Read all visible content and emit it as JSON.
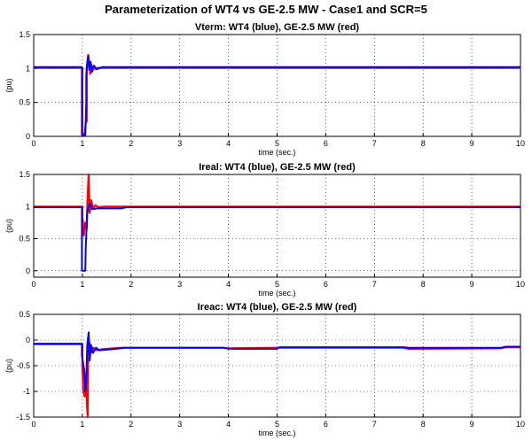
{
  "figure": {
    "title": "Parameterization of WT4 vs GE-2.5 MW - Case1 and SCR=5"
  },
  "colors": {
    "wt4": "#0000ff",
    "ge": "#ff0000",
    "axis": "#000000",
    "grid": "#000000"
  },
  "chart_data": [
    {
      "type": "line",
      "title": "Vterm: WT4 (blue), GE-2.5 MW (red)",
      "xlabel": "time (sec.)",
      "ylabel": "(pu)",
      "xlim": [
        0,
        10
      ],
      "ylim": [
        0,
        1.5
      ],
      "xticks": [
        "0",
        "1",
        "2",
        "3",
        "4",
        "5",
        "6",
        "7",
        "8",
        "9",
        "10"
      ],
      "xtick_values": [
        0,
        1,
        2,
        3,
        4,
        5,
        6,
        7,
        8,
        9,
        10
      ],
      "yticks": [
        "0",
        "0.5",
        "1",
        "1.5"
      ],
      "ytick_values": [
        0,
        0.5,
        1,
        1.5
      ],
      "grid": true,
      "series": [
        {
          "color": "#ff0000",
          "x": [
            0,
            0.99,
            1.0,
            1.0,
            1.05,
            1.07,
            1.09,
            1.09,
            1.12,
            1.14,
            1.16,
            1.18,
            1.2,
            1.23,
            1.27,
            1.32,
            1.4,
            10
          ],
          "y": [
            1.01,
            1.01,
            1.01,
            0.0,
            0.05,
            0.2,
            0.22,
            1.0,
            1.2,
            1.1,
            0.92,
            1.06,
            0.96,
            1.04,
            0.99,
            1.01,
            1.01,
            1.01
          ]
        },
        {
          "color": "#0000ff",
          "x": [
            0,
            0.98,
            0.99,
            0.99,
            1.06,
            1.08,
            1.08,
            1.1,
            1.12,
            1.14,
            1.17,
            1.2,
            1.24,
            1.3,
            1.4,
            10
          ],
          "y": [
            1.02,
            1.02,
            1.02,
            0.02,
            0.02,
            0.5,
            0.9,
            1.08,
            1.18,
            0.98,
            1.1,
            0.95,
            1.04,
            0.99,
            1.02,
            1.02
          ]
        }
      ]
    },
    {
      "type": "line",
      "title": "Ireal: WT4 (blue), GE-2.5 MW (red)",
      "xlabel": "time (sec.)",
      "ylabel": "(pu)",
      "xlim": [
        0,
        10
      ],
      "ylim": [
        -0.1,
        1.5
      ],
      "xticks": [
        "0",
        "1",
        "2",
        "3",
        "4",
        "5",
        "6",
        "7",
        "8",
        "9",
        "10"
      ],
      "xtick_values": [
        0,
        1,
        2,
        3,
        4,
        5,
        6,
        7,
        8,
        9,
        10
      ],
      "yticks": [
        "0",
        "0.5",
        "1",
        "1.5"
      ],
      "ytick_values": [
        0,
        0.5,
        1,
        1.5
      ],
      "grid": true,
      "series": [
        {
          "color": "#ff0000",
          "x": [
            0,
            0.99,
            1.0,
            1.0,
            1.01,
            1.03,
            1.06,
            1.09,
            1.1,
            1.13,
            1.15,
            1.18,
            1.22,
            1.27,
            1.33,
            1.45,
            10
          ],
          "y": [
            1.0,
            1.0,
            1.0,
            0.55,
            0.8,
            0.55,
            0.75,
            0.65,
            1.0,
            1.5,
            0.9,
            1.1,
            0.97,
            1.02,
            0.99,
            1.0,
            1.0
          ]
        },
        {
          "color": "#0000ff",
          "x": [
            0,
            0.98,
            0.99,
            0.99,
            1.06,
            1.07,
            1.1,
            1.13,
            1.16,
            1.2,
            1.3,
            1.8,
            1.9,
            10
          ],
          "y": [
            0.99,
            0.99,
            0.99,
            0.0,
            0.0,
            0.35,
            0.9,
            1.0,
            1.05,
            0.96,
            0.97,
            0.97,
            0.99,
            0.99
          ]
        }
      ]
    },
    {
      "type": "line",
      "title": "Ireac: WT4 (blue), GE-2.5 MW (red)",
      "xlabel": "time (sec.)",
      "ylabel": "(pu)",
      "xlim": [
        0,
        10
      ],
      "ylim": [
        -1.5,
        0.5
      ],
      "xticks": [
        "0",
        "1",
        "2",
        "3",
        "4",
        "5",
        "6",
        "7",
        "8",
        "9",
        "10"
      ],
      "xtick_values": [
        0,
        1,
        2,
        3,
        4,
        5,
        6,
        7,
        8,
        9,
        10
      ],
      "yticks": [
        "-1.5",
        "-1",
        "-0.5",
        "0",
        "0.5"
      ],
      "ytick_values": [
        -1.5,
        -1,
        -0.5,
        0,
        0.5
      ],
      "grid": true,
      "series": [
        {
          "color": "#ff0000",
          "x": [
            0,
            0.99,
            1.0,
            1.0,
            1.02,
            1.05,
            1.08,
            1.1,
            1.11,
            1.12,
            1.15,
            1.18,
            1.23,
            1.3,
            1.4,
            1.8,
            3.9,
            4.0,
            5.0,
            7.6,
            7.7,
            9.6,
            9.7,
            10
          ],
          "y": [
            -0.08,
            -0.08,
            -0.08,
            -0.5,
            -1.0,
            -1.1,
            -0.9,
            -1.35,
            -1.5,
            -0.2,
            -0.05,
            -0.25,
            -0.15,
            -0.2,
            -0.18,
            -0.15,
            -0.15,
            -0.16,
            -0.15,
            -0.15,
            -0.17,
            -0.16,
            -0.14,
            -0.14
          ]
        },
        {
          "color": "#0000ff",
          "x": [
            0,
            0.98,
            0.99,
            0.99,
            1.04,
            1.06,
            1.08,
            1.1,
            1.13,
            1.15,
            1.18,
            1.22,
            1.28,
            1.35,
            1.6,
            1.9,
            3.9,
            4.0,
            5.0,
            5.05,
            7.6,
            7.7,
            9.6,
            9.7,
            10
          ],
          "y": [
            -0.07,
            -0.07,
            -0.07,
            -0.3,
            -0.6,
            -1.0,
            -0.8,
            -0.1,
            0.15,
            -0.4,
            -0.1,
            -0.25,
            -0.15,
            -0.2,
            -0.18,
            -0.15,
            -0.15,
            -0.17,
            -0.17,
            -0.14,
            -0.14,
            -0.15,
            -0.15,
            -0.13,
            -0.13
          ]
        }
      ]
    }
  ]
}
